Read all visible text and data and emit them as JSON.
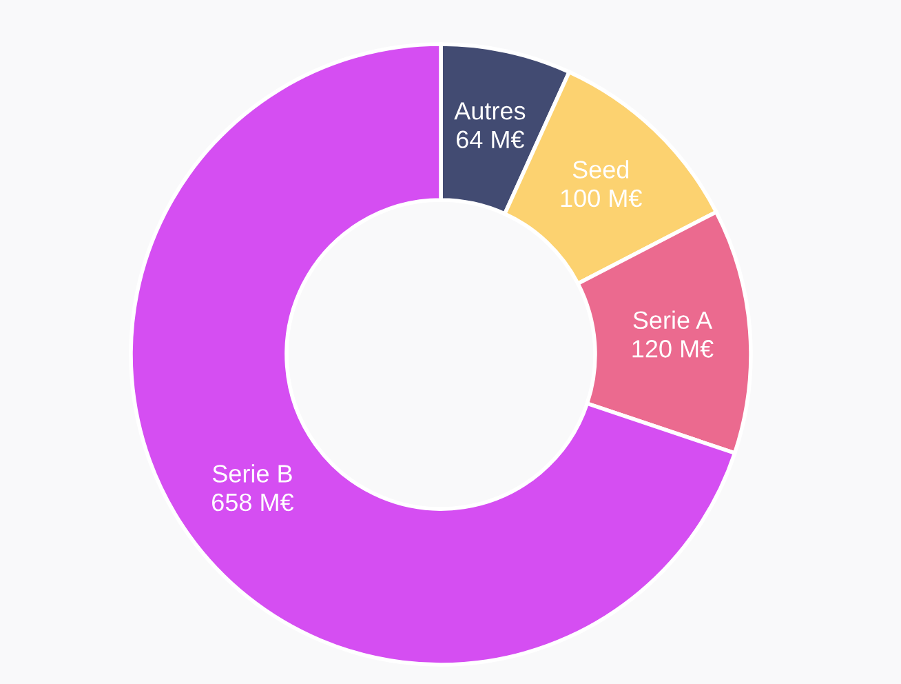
{
  "chart_data": {
    "type": "donut",
    "categories": [
      "Autres",
      "Seed",
      "Serie A",
      "Serie B"
    ],
    "values": [
      64,
      100,
      120,
      658
    ],
    "value_labels": [
      "64 M€",
      "100 M€",
      "120 M€",
      "658 M€"
    ],
    "colors": [
      "#424b72",
      "#fcd270",
      "#eb6a8f",
      "#d54ef2"
    ]
  }
}
